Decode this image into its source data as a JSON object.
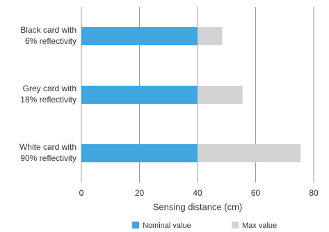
{
  "chart_data": {
    "type": "stacked_barh",
    "categories": [
      "Black card with\n6% reflectivity",
      "Grey card with\n18% reflectivity",
      "White card with\n90% reflectivity"
    ],
    "series": [
      {
        "name": "Nominal value",
        "color": "#3fa6df",
        "values": [
          40,
          40,
          40
        ]
      },
      {
        "name": "Max value",
        "color": "#d3d3d3",
        "values": [
          8.5,
          15.5,
          35.5
        ]
      }
    ],
    "xlabel": "Sensing distance (cm)",
    "xlim": [
      0,
      80
    ],
    "xticks": [
      0,
      20,
      40,
      60,
      80
    ],
    "grid": true
  }
}
